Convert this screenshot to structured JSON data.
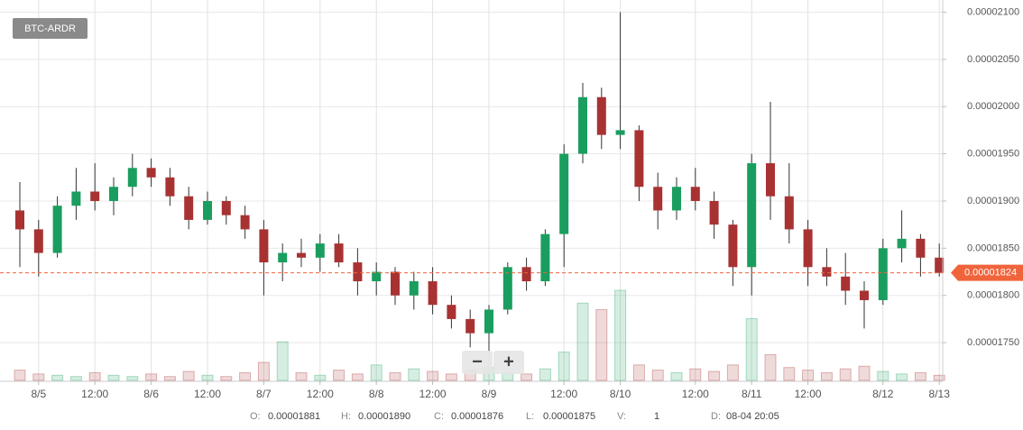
{
  "chart_data": {
    "type": "candlestick",
    "symbol": "BTC-ARDR",
    "categories": [
      null,
      "8/5",
      null,
      null,
      "12:00",
      null,
      null,
      "8/6",
      null,
      null,
      "12:00",
      null,
      null,
      "8/7",
      null,
      null,
      "12:00",
      null,
      null,
      "8/8",
      null,
      null,
      "12:00",
      null,
      null,
      "8/9",
      null,
      null,
      null,
      "12:00",
      null,
      null,
      "8/10",
      null,
      null,
      null,
      "12:00",
      null,
      null,
      "8/11",
      null,
      null,
      "12:00",
      null,
      null,
      null,
      "8/12",
      null,
      null,
      "8/13"
    ],
    "open": [
      1.89e-05,
      1.87e-05,
      1.845e-05,
      1.895e-05,
      1.91e-05,
      1.9e-05,
      1.915e-05,
      1.935e-05,
      1.925e-05,
      1.905e-05,
      1.88e-05,
      1.9e-05,
      1.885e-05,
      1.87e-05,
      1.835e-05,
      1.845e-05,
      1.84e-05,
      1.855e-05,
      1.835e-05,
      1.815e-05,
      1.825e-05,
      1.8e-05,
      1.815e-05,
      1.79e-05,
      1.775e-05,
      1.76e-05,
      1.785e-05,
      1.83e-05,
      1.815e-05,
      1.865e-05,
      1.95e-05,
      2.01e-05,
      1.97e-05,
      1.975e-05,
      1.915e-05,
      1.89e-05,
      1.915e-05,
      1.9e-05,
      1.875e-05,
      1.83e-05,
      1.94e-05,
      1.905e-05,
      1.87e-05,
      1.83e-05,
      1.82e-05,
      1.805e-05,
      1.795e-05,
      1.85e-05,
      1.86e-05,
      1.84e-05
    ],
    "high": [
      1.92e-05,
      1.88e-05,
      1.905e-05,
      1.935e-05,
      1.94e-05,
      1.925e-05,
      1.95e-05,
      1.945e-05,
      1.935e-05,
      1.915e-05,
      1.91e-05,
      1.905e-05,
      1.895e-05,
      1.88e-05,
      1.855e-05,
      1.86e-05,
      1.865e-05,
      1.865e-05,
      1.85e-05,
      1.835e-05,
      1.83e-05,
      1.825e-05,
      1.83e-05,
      1.8e-05,
      1.785e-05,
      1.79e-05,
      1.835e-05,
      1.84e-05,
      1.87e-05,
      1.96e-05,
      2.025e-05,
      2.02e-05,
      2.1e-05,
      1.98e-05,
      1.93e-05,
      1.925e-05,
      1.935e-05,
      1.91e-05,
      1.88e-05,
      1.95e-05,
      2.005e-05,
      1.94e-05,
      1.88e-05,
      1.85e-05,
      1.845e-05,
      1.815e-05,
      1.86e-05,
      1.89e-05,
      1.865e-05,
      1.855e-05
    ],
    "low": [
      1.83e-05,
      1.82e-05,
      1.84e-05,
      1.88e-05,
      1.89e-05,
      1.885e-05,
      1.905e-05,
      1.915e-05,
      1.895e-05,
      1.87e-05,
      1.875e-05,
      1.875e-05,
      1.86e-05,
      1.8e-05,
      1.815e-05,
      1.83e-05,
      1.825e-05,
      1.83e-05,
      1.8e-05,
      1.8e-05,
      1.79e-05,
      1.785e-05,
      1.78e-05,
      1.765e-05,
      1.745e-05,
      1.74e-05,
      1.78e-05,
      1.805e-05,
      1.81e-05,
      1.83e-05,
      1.94e-05,
      1.955e-05,
      1.955e-05,
      1.9e-05,
      1.87e-05,
      1.88e-05,
      1.89e-05,
      1.86e-05,
      1.81e-05,
      1.8e-05,
      1.88e-05,
      1.855e-05,
      1.81e-05,
      1.81e-05,
      1.79e-05,
      1.765e-05,
      1.79e-05,
      1.835e-05,
      1.82e-05,
      1.82e-05
    ],
    "close": [
      1.87e-05,
      1.845e-05,
      1.895e-05,
      1.91e-05,
      1.9e-05,
      1.915e-05,
      1.935e-05,
      1.925e-05,
      1.905e-05,
      1.88e-05,
      1.9e-05,
      1.885e-05,
      1.87e-05,
      1.835e-05,
      1.845e-05,
      1.84e-05,
      1.855e-05,
      1.835e-05,
      1.815e-05,
      1.825e-05,
      1.8e-05,
      1.815e-05,
      1.79e-05,
      1.775e-05,
      1.76e-05,
      1.785e-05,
      1.83e-05,
      1.815e-05,
      1.865e-05,
      1.95e-05,
      2.01e-05,
      1.97e-05,
      1.975e-05,
      1.915e-05,
      1.89e-05,
      1.915e-05,
      1.9e-05,
      1.875e-05,
      1.83e-05,
      1.94e-05,
      1.905e-05,
      1.87e-05,
      1.83e-05,
      1.82e-05,
      1.805e-05,
      1.795e-05,
      1.85e-05,
      1.86e-05,
      1.84e-05,
      1.824e-05
    ],
    "volume": [
      8,
      5,
      4,
      3,
      6,
      4,
      3,
      5,
      3,
      7,
      4,
      3,
      6,
      14,
      30,
      6,
      4,
      8,
      5,
      12,
      6,
      9,
      7,
      5,
      8,
      10,
      6,
      5,
      9,
      22,
      60,
      55,
      70,
      12,
      8,
      6,
      9,
      7,
      12,
      48,
      20,
      10,
      8,
      6,
      9,
      11,
      7,
      5,
      6,
      4
    ],
    "up_color": "#1a9e5f",
    "down_color": "#a83232",
    "ylim": [
      1.71e-05,
      2.11e-05
    ],
    "yticks": [
      {
        "value": 1.75e-05,
        "label": "0.00001750"
      },
      {
        "value": 1.8e-05,
        "label": "0.00001800"
      },
      {
        "value": 1.85e-05,
        "label": "0.00001850"
      },
      {
        "value": 1.9e-05,
        "label": "0.00001900"
      },
      {
        "value": 1.95e-05,
        "label": "0.00001950"
      },
      {
        "value": 2e-05,
        "label": "0.00002000"
      },
      {
        "value": 2.05e-05,
        "label": "0.00002050"
      },
      {
        "value": 2.1e-05,
        "label": "0.00002100"
      }
    ],
    "grid": true,
    "last_price": 1.824e-05,
    "last_price_color": "#f0643c",
    "zoom_out": "−",
    "zoom_in": "+",
    "info": [
      {
        "label": "O:",
        "value": "0.00001881"
      },
      {
        "label": "H:",
        "value": "0.00001890"
      },
      {
        "label": "C:",
        "value": "0.00001876"
      },
      {
        "label": "L:",
        "value": "0.00001875"
      },
      {
        "label": "V:",
        "value": "1"
      },
      {
        "label": "D:",
        "value": "08-04 20:05"
      }
    ]
  }
}
